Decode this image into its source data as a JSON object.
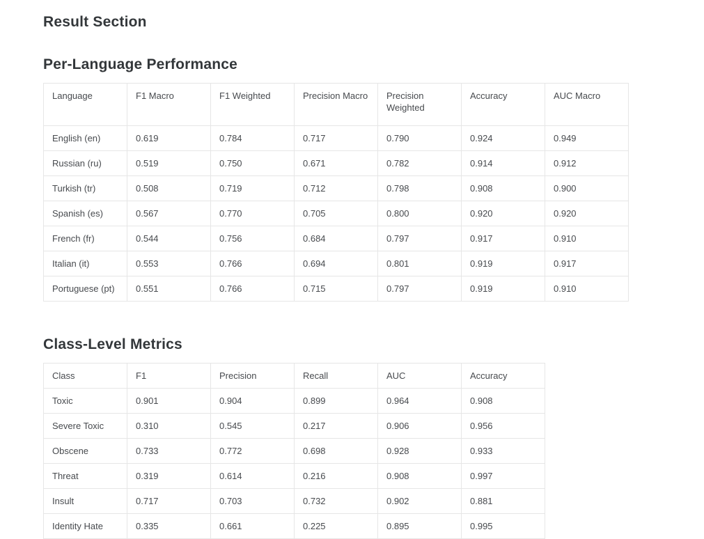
{
  "page": {
    "title": "Result Section"
  },
  "sections": [
    {
      "heading": "Per-Language Performance",
      "table": {
        "columns": [
          "Language",
          "F1 Macro",
          "F1 Weighted",
          "Precision Macro",
          "Precision Weighted",
          "Accuracy",
          "AUC Macro"
        ],
        "rows": [
          [
            "English (en)",
            "0.619",
            "0.784",
            "0.717",
            "0.790",
            "0.924",
            "0.949"
          ],
          [
            "Russian (ru)",
            "0.519",
            "0.750",
            "0.671",
            "0.782",
            "0.914",
            "0.912"
          ],
          [
            "Turkish (tr)",
            "0.508",
            "0.719",
            "0.712",
            "0.798",
            "0.908",
            "0.900"
          ],
          [
            "Spanish (es)",
            "0.567",
            "0.770",
            "0.705",
            "0.800",
            "0.920",
            "0.920"
          ],
          [
            "French (fr)",
            "0.544",
            "0.756",
            "0.684",
            "0.797",
            "0.917",
            "0.910"
          ],
          [
            "Italian (it)",
            "0.553",
            "0.766",
            "0.694",
            "0.801",
            "0.919",
            "0.917"
          ],
          [
            "Portuguese (pt)",
            "0.551",
            "0.766",
            "0.715",
            "0.797",
            "0.919",
            "0.910"
          ]
        ]
      }
    },
    {
      "heading": "Class-Level Metrics",
      "table": {
        "columns": [
          "Class",
          "F1",
          "Precision",
          "Recall",
          "AUC",
          "Accuracy"
        ],
        "rows": [
          [
            "Toxic",
            "0.901",
            "0.904",
            "0.899",
            "0.964",
            "0.908"
          ],
          [
            "Severe Toxic",
            "0.310",
            "0.545",
            "0.217",
            "0.906",
            "0.956"
          ],
          [
            "Obscene",
            "0.733",
            "0.772",
            "0.698",
            "0.928",
            "0.933"
          ],
          [
            "Threat",
            "0.319",
            "0.614",
            "0.216",
            "0.908",
            "0.997"
          ],
          [
            "Insult",
            "0.717",
            "0.703",
            "0.732",
            "0.902",
            "0.881"
          ],
          [
            "Identity Hate",
            "0.335",
            "0.661",
            "0.225",
            "0.895",
            "0.995"
          ]
        ]
      }
    }
  ],
  "colors": {
    "background": "#ffffff",
    "heading_text": "#33373a",
    "cell_text": "#474a4e",
    "table_border": "#e6e6e6"
  }
}
